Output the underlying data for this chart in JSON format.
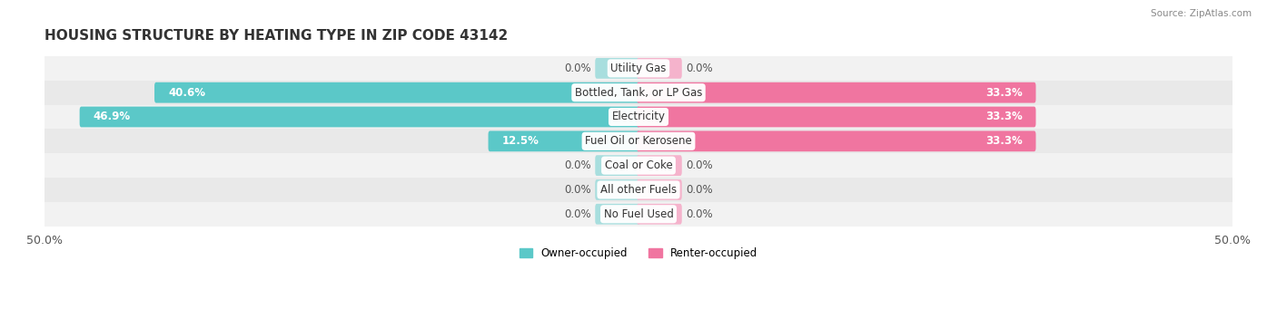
{
  "title": "HOUSING STRUCTURE BY HEATING TYPE IN ZIP CODE 43142",
  "source": "Source: ZipAtlas.com",
  "categories": [
    "Utility Gas",
    "Bottled, Tank, or LP Gas",
    "Electricity",
    "Fuel Oil or Kerosene",
    "Coal or Coke",
    "All other Fuels",
    "No Fuel Used"
  ],
  "owner_values": [
    0.0,
    40.6,
    46.9,
    12.5,
    0.0,
    0.0,
    0.0
  ],
  "renter_values": [
    0.0,
    33.3,
    33.3,
    33.3,
    0.0,
    0.0,
    0.0
  ],
  "owner_color": "#5bc8c8",
  "renter_color": "#f075a0",
  "owner_color_zero": "#a8dede",
  "renter_color_zero": "#f5b3cc",
  "max_val": 50.0,
  "label_fontsize": 8.5,
  "title_fontsize": 11,
  "xlabel_fontsize": 9,
  "bar_height": 0.55,
  "zero_bar_width": 3.5,
  "row_bg_even": "#f2f2f2",
  "row_bg_odd": "#e9e9e9"
}
